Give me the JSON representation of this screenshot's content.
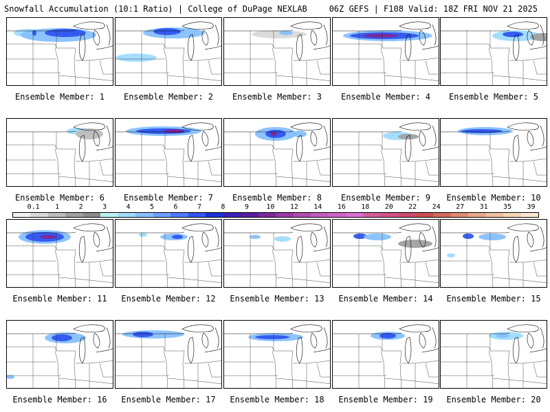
{
  "header": {
    "left": "Snowfall Accumulation (10:1 Ratio) | College of DuPage NEXLAB",
    "right": "06Z GEFS | F108 Valid: 18Z FRI NOV 21 2025"
  },
  "colorbar": {
    "ticks": [
      "0.1",
      "1",
      "2",
      "3",
      "4",
      "5",
      "6",
      "7",
      "8",
      "9",
      "10",
      "12",
      "14",
      "16",
      "18",
      "20",
      "22",
      "24",
      "27",
      "31",
      "35",
      "39"
    ],
    "colors": [
      "#f2f2f2",
      "#d9d9d9",
      "#bdbdbd",
      "#a0a0a0",
      "#8a8a8a",
      "#b8f0f0",
      "#9fdbff",
      "#86c0ff",
      "#6aa0ff",
      "#4a7cff",
      "#2f55f0",
      "#1d2ed8",
      "#3a1fb8",
      "#5a1ea0",
      "#7a2a9a",
      "#9a3aa6",
      "#b04cb0",
      "#c45cc0",
      "#cf62c8",
      "#d96fd2",
      "#d35c9a",
      "#d0508a",
      "#cc4a6a",
      "#c85050",
      "#d46a5a",
      "#de8b72",
      "#e8a88a",
      "#f0c0a0",
      "#f6d5b6",
      "#fbe7cf"
    ]
  },
  "panels": [
    {
      "label": "Ensemble Member: 1"
    },
    {
      "label": "Ensemble Member: 2"
    },
    {
      "label": "Ensemble Member: 3"
    },
    {
      "label": "Ensemble Member: 4"
    },
    {
      "label": "Ensemble Member: 5"
    },
    {
      "label": "Ensemble Member: 6"
    },
    {
      "label": "Ensemble Member: 7"
    },
    {
      "label": "Ensemble Member: 8"
    },
    {
      "label": "Ensemble Member: 9"
    },
    {
      "label": "Ensemble Member: 10"
    },
    {
      "label": "Ensemble Member: 11"
    },
    {
      "label": "Ensemble Member: 12"
    },
    {
      "label": "Ensemble Member: 13"
    },
    {
      "label": "Ensemble Member: 14"
    },
    {
      "label": "Ensemble Member: 15"
    },
    {
      "label": "Ensemble Member: 16"
    },
    {
      "label": "Ensemble Member: 17"
    },
    {
      "label": "Ensemble Member: 18"
    },
    {
      "label": "Ensemble Member: 19"
    },
    {
      "label": "Ensemble Member: 20"
    }
  ]
}
